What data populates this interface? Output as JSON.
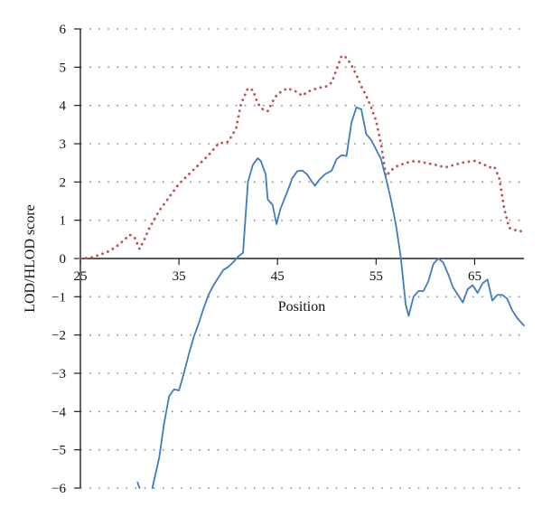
{
  "chart_data": {
    "type": "line",
    "title": "",
    "xlabel": "Position",
    "ylabel": "LOD/HLOD score",
    "xlim": [
      25,
      70
    ],
    "ylim": [
      -6,
      6
    ],
    "x_ticks": [
      25,
      35,
      45,
      55,
      65
    ],
    "y_ticks": [
      6,
      5,
      4,
      3,
      2,
      1,
      0,
      -1,
      -2,
      -3,
      -4,
      -5,
      -6
    ],
    "x_tick_labels": [
      "25",
      "35",
      "45",
      "55",
      "65"
    ],
    "y_tick_labels": [
      "6",
      "5",
      "4",
      "3",
      "2",
      "1",
      "0",
      "−1",
      "−2",
      "−3",
      "−4",
      "−5",
      "−6"
    ],
    "grid": "horizontal dotted",
    "legend": "none",
    "series": [
      {
        "style": "dotted",
        "color": "#c0504d",
        "points": [
          [
            25,
            0.0
          ],
          [
            26,
            0.02
          ],
          [
            27,
            0.1
          ],
          [
            28,
            0.2
          ],
          [
            29,
            0.38
          ],
          [
            30,
            0.62
          ],
          [
            30.5,
            0.55
          ],
          [
            31,
            0.25
          ],
          [
            31.5,
            0.5
          ],
          [
            32,
            0.8
          ],
          [
            33,
            1.25
          ],
          [
            34,
            1.6
          ],
          [
            35,
            1.95
          ],
          [
            36,
            2.2
          ],
          [
            37,
            2.45
          ],
          [
            38,
            2.7
          ],
          [
            39,
            3.0
          ],
          [
            40,
            3.05
          ],
          [
            40.8,
            3.4
          ],
          [
            41.3,
            4.05
          ],
          [
            42,
            4.45
          ],
          [
            42.5,
            4.4
          ],
          [
            43,
            4.05
          ],
          [
            43.5,
            3.9
          ],
          [
            44,
            3.85
          ],
          [
            44.5,
            4.1
          ],
          [
            45,
            4.3
          ],
          [
            46,
            4.45
          ],
          [
            47,
            4.35
          ],
          [
            47.5,
            4.25
          ],
          [
            48,
            4.35
          ],
          [
            49,
            4.45
          ],
          [
            50,
            4.5
          ],
          [
            50.5,
            4.6
          ],
          [
            51,
            4.95
          ],
          [
            51.5,
            5.3
          ],
          [
            52,
            5.25
          ],
          [
            52.5,
            5.05
          ],
          [
            53,
            4.8
          ],
          [
            53.5,
            4.5
          ],
          [
            54,
            4.25
          ],
          [
            54.5,
            3.95
          ],
          [
            55,
            3.6
          ],
          [
            55.5,
            3.0
          ],
          [
            56,
            2.15
          ],
          [
            56.5,
            2.3
          ],
          [
            57,
            2.4
          ],
          [
            58,
            2.5
          ],
          [
            59,
            2.55
          ],
          [
            60,
            2.5
          ],
          [
            61,
            2.45
          ],
          [
            62,
            2.38
          ],
          [
            63,
            2.45
          ],
          [
            64,
            2.52
          ],
          [
            65,
            2.55
          ],
          [
            66,
            2.45
          ],
          [
            66.5,
            2.38
          ],
          [
            67,
            2.4
          ],
          [
            67.5,
            2.1
          ],
          [
            68,
            1.3
          ],
          [
            68.5,
            0.8
          ],
          [
            69,
            0.75
          ],
          [
            70,
            0.7
          ]
        ]
      },
      {
        "style": "solid",
        "color": "#3f7cbf",
        "segments": [
          [
            [
              30.8,
              -5.85
            ],
            [
              31,
              -6.0
            ]
          ],
          [
            [
              32.3,
              -6.0
            ],
            [
              33,
              -5.2
            ],
            [
              33.5,
              -4.3
            ],
            [
              34,
              -3.6
            ],
            [
              34.5,
              -3.42
            ],
            [
              35,
              -3.45
            ],
            [
              35.5,
              -3.0
            ],
            [
              36,
              -2.5
            ],
            [
              36.5,
              -2.05
            ],
            [
              37,
              -1.7
            ],
            [
              37.5,
              -1.3
            ],
            [
              38,
              -0.95
            ],
            [
              38.5,
              -0.7
            ],
            [
              39,
              -0.5
            ],
            [
              39.5,
              -0.3
            ],
            [
              40,
              -0.22
            ],
            [
              40.5,
              -0.1
            ],
            [
              41,
              0.05
            ],
            [
              41.5,
              0.15
            ],
            [
              42,
              2.0
            ],
            [
              42.5,
              2.45
            ],
            [
              43,
              2.62
            ],
            [
              43.3,
              2.55
            ],
            [
              43.8,
              2.2
            ],
            [
              44,
              1.55
            ],
            [
              44.5,
              1.4
            ],
            [
              44.9,
              0.9
            ],
            [
              45.3,
              1.3
            ],
            [
              46,
              1.75
            ],
            [
              46.5,
              2.1
            ],
            [
              47,
              2.28
            ],
            [
              47.5,
              2.3
            ],
            [
              48,
              2.2
            ],
            [
              48.5,
              2.0
            ],
            [
              48.8,
              1.9
            ],
            [
              49.2,
              2.05
            ],
            [
              49.8,
              2.2
            ],
            [
              50.5,
              2.3
            ],
            [
              51,
              2.6
            ],
            [
              51.5,
              2.7
            ],
            [
              52,
              2.68
            ],
            [
              52.5,
              3.55
            ],
            [
              53,
              3.95
            ],
            [
              53.5,
              3.9
            ],
            [
              54,
              3.25
            ],
            [
              54.5,
              3.1
            ],
            [
              55,
              2.85
            ],
            [
              55.5,
              2.6
            ],
            [
              56,
              2.1
            ],
            [
              56.5,
              1.55
            ],
            [
              57,
              0.9
            ],
            [
              57.5,
              0.05
            ],
            [
              58,
              -1.2
            ],
            [
              58.3,
              -1.5
            ],
            [
              58.8,
              -1.0
            ],
            [
              59.3,
              -0.85
            ],
            [
              59.8,
              -0.85
            ],
            [
              60.3,
              -0.6
            ],
            [
              60.8,
              -0.15
            ],
            [
              61.3,
              0.0
            ],
            [
              61.8,
              -0.1
            ],
            [
              62.3,
              -0.4
            ],
            [
              62.8,
              -0.75
            ],
            [
              63.3,
              -0.95
            ],
            [
              63.8,
              -1.15
            ],
            [
              64.3,
              -0.8
            ],
            [
              64.8,
              -0.7
            ],
            [
              65.3,
              -0.9
            ],
            [
              65.8,
              -0.65
            ],
            [
              66.3,
              -0.55
            ],
            [
              66.8,
              -1.1
            ],
            [
              67.3,
              -0.95
            ],
            [
              67.8,
              -0.95
            ],
            [
              68.3,
              -1.05
            ],
            [
              68.8,
              -1.35
            ],
            [
              69.3,
              -1.55
            ],
            [
              69.8,
              -1.7
            ],
            [
              70,
              -1.75
            ]
          ]
        ]
      }
    ]
  }
}
